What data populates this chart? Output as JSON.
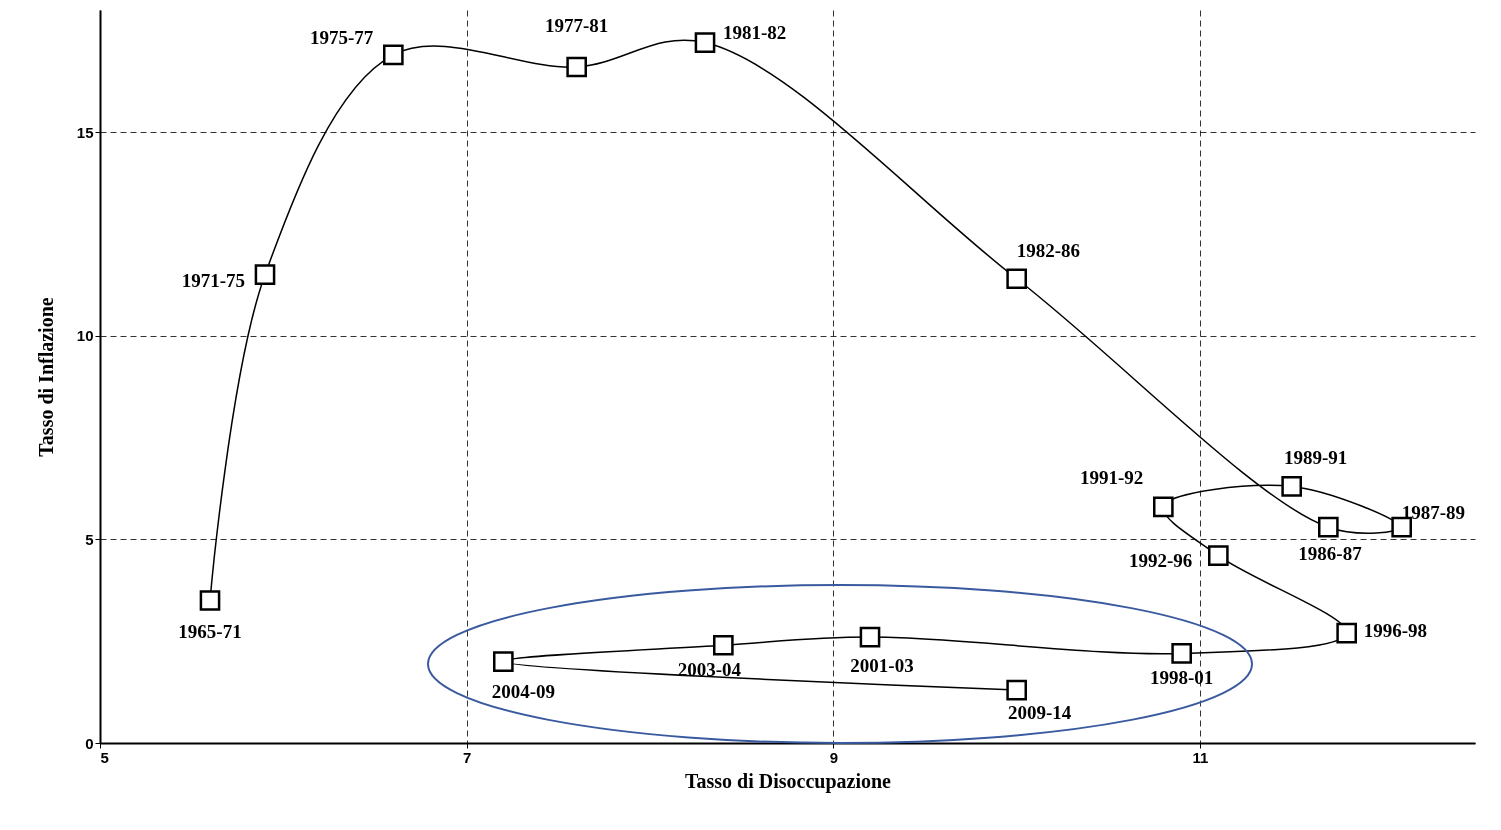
{
  "chart_data": {
    "type": "line",
    "xlabel": "Tasso di Disoccupazione",
    "ylabel": "Tasso di Inflazione",
    "x": [
      5.6,
      5.9,
      6.6,
      7.6,
      8.3,
      10.0,
      11.7,
      12.1,
      11.5,
      10.8,
      11.1,
      11.8,
      10.9,
      9.2,
      8.4,
      7.2,
      10.0
    ],
    "values": [
      3.5,
      11.5,
      16.9,
      16.6,
      17.2,
      11.4,
      5.3,
      5.3,
      6.3,
      5.8,
      4.6,
      2.7,
      2.2,
      2.6,
      2.4,
      2.0,
      1.3
    ],
    "value_labels": [
      "1965-71",
      "1971-75",
      "1975-77",
      "1977-81",
      "1981-82",
      "1982-86",
      "1986-87",
      "1987-89",
      "1989-91",
      "1991-92",
      "1992-96",
      "1996-98",
      "1998-01",
      "2001-03",
      "2003-04",
      "2004-09",
      "2009-14"
    ],
    "color": "#000000",
    "marker": "square",
    "line_style": "solid",
    "grid": true,
    "xlim": [
      5,
      12.5
    ],
    "ylim": [
      0,
      18
    ],
    "xticks": [
      5,
      7,
      9,
      11
    ],
    "yticks": [
      0,
      5,
      10,
      15
    ]
  }
}
